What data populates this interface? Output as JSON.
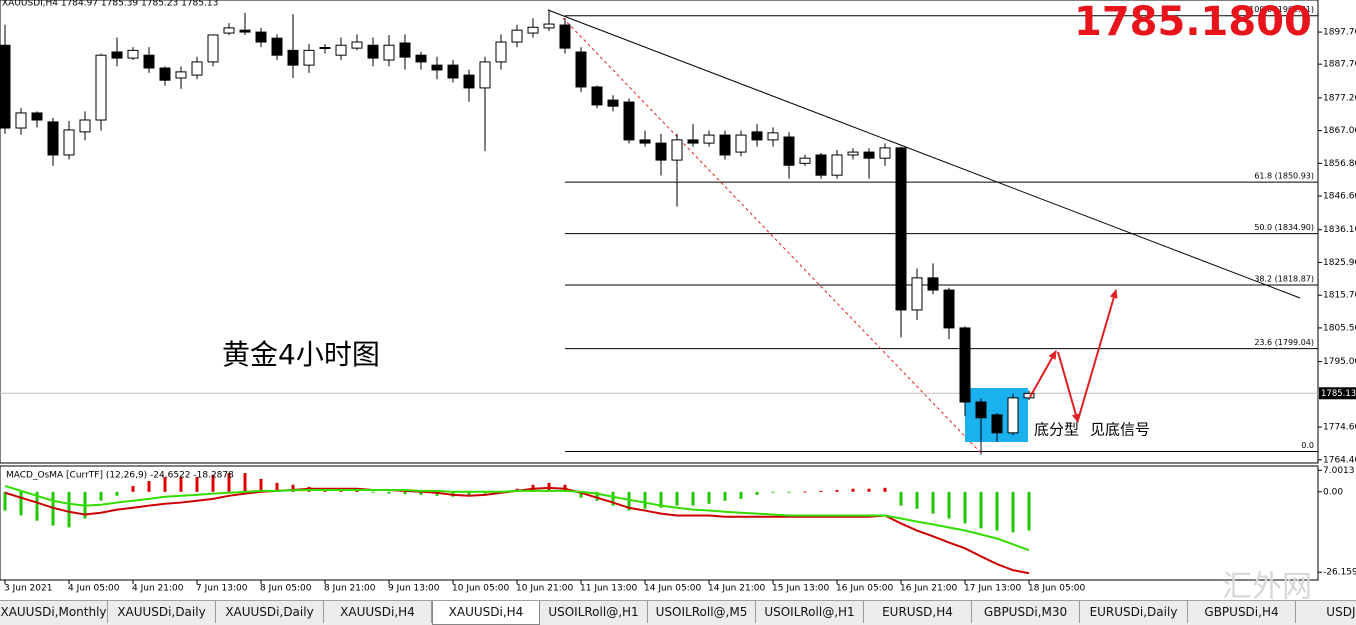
{
  "chart_data": [
    {
      "type": "candlestick",
      "title": "XAUUSDi,H4  1784.97 1785.39 1785.23 1785.13",
      "categories": [
        "3 Jun 2021",
        null,
        null,
        null,
        "4 Jun 05:00",
        null,
        null,
        null,
        "4 Jun 21:00",
        null,
        null,
        null,
        "7 Jun 13:00",
        null,
        null,
        null,
        "8 Jun 05:00",
        null,
        null,
        null,
        "8 Jun 21:00",
        null,
        null,
        null,
        "9 Jun 13:00",
        null,
        null,
        null,
        "10 Jun 05:00",
        null,
        null,
        null,
        "10 Jun 21:00",
        null,
        null,
        null,
        "11 Jun 13:00",
        null,
        null,
        null,
        "14 Jun 05:00",
        null,
        null,
        null,
        "14 Jun 21:00",
        null,
        null,
        null,
        "15 Jun 13:00",
        null,
        null,
        null,
        "16 Jun 05:00",
        null,
        null,
        null,
        "16 Jun 21:00",
        null,
        null,
        null,
        "17 Jun 13:00",
        null,
        null,
        null,
        "18 Jun 05:00"
      ],
      "open": [
        1893.6,
        1867.8,
        1872.5,
        1869.7,
        1859.4,
        1866.6,
        1870.3,
        1891.5,
        1889.6,
        1890.5,
        1886.5,
        1883.4,
        1884.3,
        1888.4,
        1897.4,
        1898.3,
        1897.7,
        1895.8,
        1892.0,
        1887.4,
        1892.7,
        1890.5,
        1892.7,
        1893.6,
        1889.0,
        1894.3,
        1890.5,
        1887.4,
        1887.4,
        1884.3,
        1880.3,
        1888.4,
        1894.6,
        1897.4,
        1899.0,
        1899.9,
        1891.5,
        1880.6,
        1876.5,
        1875.9,
        1864.1,
        1863.1,
        1857.8,
        1864.1,
        1863.1,
        1865.6,
        1860.3,
        1866.6,
        1864.1,
        1865.0,
        1856.8,
        1859.4,
        1853.1,
        1859.4,
        1860.3,
        1858.4,
        1861.6,
        1811.1,
        1821.1,
        1817.3,
        1805.5,
        1782.4,
        1778.4,
        1772.8,
        1783.7
      ],
      "high": [
        1900.0,
        1874.0,
        1873.0,
        1871.0,
        1870.0,
        1873.0,
        1891.0,
        1896.0,
        1893.0,
        1893.0,
        1887.0,
        1887.0,
        1890.0,
        1897.0,
        1900.5,
        1903.7,
        1899.0,
        1897.0,
        1903.3,
        1894.0,
        1894.0,
        1896.0,
        1897.0,
        1896.0,
        1896.8,
        1897.0,
        1891.5,
        1890.0,
        1889.0,
        1886.0,
        1890.0,
        1897.0,
        1900.0,
        1902.0,
        1904.7,
        1902.0,
        1893.0,
        1881.0,
        1878.0,
        1877.0,
        1867.0,
        1866.0,
        1866.0,
        1869.0,
        1867.0,
        1867.0,
        1867.0,
        1869.0,
        1868.0,
        1866.5,
        1859.5,
        1860.0,
        1861.0,
        1861.5,
        1861.5,
        1863.0,
        1862.0,
        1824.0,
        1825.6,
        1818.0,
        1806.0,
        1783.5,
        1779.0,
        1785.0,
        1786.0
      ],
      "low": [
        1866.0,
        1865.7,
        1868.0,
        1856.0,
        1858.0,
        1864.0,
        1867.0,
        1887.0,
        1889.0,
        1885.0,
        1881.0,
        1880.0,
        1883.0,
        1887.0,
        1896.8,
        1896.8,
        1893.0,
        1889.0,
        1883.4,
        1885.0,
        1891.0,
        1889.0,
        1892.0,
        1887.0,
        1887.0,
        1886.0,
        1886.0,
        1883.0,
        1882.0,
        1876.0,
        1860.6,
        1886.0,
        1893.0,
        1896.0,
        1898.0,
        1891.0,
        1879.0,
        1874.0,
        1873.0,
        1863.0,
        1862.0,
        1853.0,
        1843.3,
        1862.0,
        1862.0,
        1858.0,
        1859.0,
        1862.0,
        1862.0,
        1852.0,
        1856.0,
        1852.0,
        1852.0,
        1858.0,
        1852.0,
        1856.0,
        1802.6,
        1808.0,
        1816.0,
        1802.0,
        1778.0,
        1766.0,
        1770.0,
        1772.0,
        1783.0
      ],
      "close": [
        1867.8,
        1872.5,
        1870.3,
        1859.4,
        1867.2,
        1870.3,
        1890.5,
        1889.6,
        1892.0,
        1886.5,
        1882.7,
        1885.3,
        1888.4,
        1896.8,
        1899.0,
        1897.7,
        1894.6,
        1890.5,
        1887.4,
        1892.0,
        1892.9,
        1893.6,
        1894.6,
        1889.6,
        1893.6,
        1889.9,
        1888.4,
        1885.9,
        1883.4,
        1880.3,
        1888.4,
        1894.6,
        1898.3,
        1899.2,
        1900.2,
        1892.7,
        1880.6,
        1875.0,
        1874.6,
        1864.1,
        1863.1,
        1857.8,
        1864.1,
        1863.1,
        1865.6,
        1859.4,
        1865.6,
        1864.1,
        1866.3,
        1856.2,
        1858.4,
        1853.1,
        1859.4,
        1860.3,
        1858.4,
        1861.6,
        1811.1,
        1821.1,
        1817.3,
        1805.5,
        1782.4,
        1777.5,
        1772.8,
        1783.7,
        1785.1
      ],
      "ylim": [
        1763.4,
        1907.7
      ],
      "yticks": [
        {
          "value": 1897.7,
          "label": "1897.70"
        },
        {
          "value": 1887.7,
          "label": "1887.70"
        },
        {
          "value": 1877.2,
          "label": "1877.20"
        },
        {
          "value": 1867.0,
          "label": "1867.00"
        },
        {
          "value": 1856.8,
          "label": "1856.80"
        },
        {
          "value": 1846.6,
          "label": "1846.60"
        },
        {
          "value": 1836.1,
          "label": "1836.10"
        },
        {
          "value": 1825.9,
          "label": "1825.90"
        },
        {
          "value": 1815.7,
          "label": "1815.70"
        },
        {
          "value": 1805.5,
          "label": "1805.50"
        },
        {
          "value": 1795.0,
          "label": "1795.00"
        },
        {
          "value": 1774.6,
          "label": "1774.60"
        },
        {
          "value": 1764.4,
          "label": "1764.40"
        }
      ],
      "last_price": 1785.13,
      "fib_levels": [
        {
          "value": 1902.81,
          "label": "100.0 (1902.81)"
        },
        {
          "value": 1850.93,
          "label": "61.8 (1850.93)"
        },
        {
          "value": 1834.9,
          "label": "50.0 (1834.90)"
        },
        {
          "value": 1818.87,
          "label": "38.2 (1818.87)"
        },
        {
          "value": 1799.04,
          "label": "23.6 (1799.04)"
        },
        {
          "value": 1766.97,
          "label": "0.0"
        }
      ],
      "bull_color": "#ffffff",
      "bear_color": "#000000"
    },
    {
      "type": "macd",
      "title": "MACD_OsMA [CurrTF] (12,26,9) -24.6522 -18.2878",
      "histogram": [
        -6.1,
        -7.7,
        -9.4,
        -11.0,
        -11.6,
        -8.7,
        -2.9,
        -1.3,
        1.9,
        3.5,
        4.8,
        4.8,
        4.8,
        5.5,
        6.1,
        6.1,
        4.2,
        2.9,
        2.3,
        1.6,
        1.0,
        0.6,
        0.3,
        -0.3,
        -0.6,
        -0.8,
        -1.0,
        -1.3,
        -1.6,
        -1.3,
        -0.6,
        0.3,
        1.0,
        2.3,
        2.9,
        2.3,
        -1.9,
        -2.9,
        -4.5,
        -6.1,
        -5.5,
        -5.2,
        -4.5,
        -4.5,
        -3.9,
        -2.9,
        -2.3,
        -1.0,
        -0.3,
        -0.2,
        0.1,
        0.3,
        0.6,
        1.0,
        1.0,
        1.3,
        -4.5,
        -5.5,
        -7.1,
        -8.7,
        -10.3,
        -11.9,
        -12.6,
        -13.2,
        -12.6
      ],
      "positive_color": "#dd0000",
      "negative_color": "#22c800",
      "series": [
        {
          "color": "#cc0000",
          "values": [
            -0.3,
            -1.9,
            -3.5,
            -5.2,
            -6.5,
            -7.4,
            -6.8,
            -5.8,
            -5.2,
            -4.5,
            -3.9,
            -3.5,
            -2.9,
            -2.3,
            -1.3,
            -0.6,
            0,
            0.3,
            0.6,
            1.0,
            1.0,
            1.0,
            1.0,
            0.6,
            0.6,
            0.3,
            0,
            -0.3,
            -1.0,
            -1.3,
            -1.0,
            -0.3,
            0.3,
            1.0,
            1.3,
            1.0,
            -0.3,
            -1.9,
            -3.5,
            -5.2,
            -6.1,
            -7.1,
            -7.7,
            -7.7,
            -7.7,
            -8.1,
            -8.1,
            -8.1,
            -8.1,
            -8.1,
            -8.1,
            -8.1,
            -8.1,
            -8.1,
            -8.1,
            -7.7,
            -10.3,
            -12.6,
            -14.5,
            -16.5,
            -18.4,
            -21.0,
            -23.5,
            -25.5,
            -26.5
          ]
        },
        {
          "color": "#33dd00",
          "values": [
            1.9,
            0.3,
            -1.3,
            -2.9,
            -3.9,
            -4.5,
            -4.2,
            -3.5,
            -2.9,
            -2.3,
            -1.6,
            -1.3,
            -1.0,
            -0.6,
            -0.3,
            0,
            0.3,
            0.3,
            0.5,
            0.6,
            0.6,
            0.6,
            0.6,
            0.6,
            0.6,
            0.6,
            0.3,
            0.3,
            0,
            0,
            0,
            0,
            0.3,
            0.3,
            0.3,
            0.3,
            0,
            -0.6,
            -1.6,
            -2.6,
            -3.5,
            -4.5,
            -5.2,
            -5.8,
            -6.1,
            -6.5,
            -6.8,
            -7.1,
            -7.4,
            -7.7,
            -7.7,
            -7.7,
            -7.7,
            -7.7,
            -7.7,
            -7.7,
            -8.7,
            -9.7,
            -10.6,
            -11.6,
            -12.6,
            -13.9,
            -15.2,
            -17.1,
            -19.0
          ]
        }
      ],
      "ylim": [
        -28.7,
        8.4
      ],
      "yticks": [
        7.0013,
        {
          "value": 0,
          "label": "0.00"
        },
        -26.1596
      ]
    }
  ],
  "annotations": {
    "chart_label": "黄金4小时图",
    "pattern": "底分型",
    "signal": "见底信号",
    "price": "1785.1800",
    "watermark": "汇外网"
  },
  "tabs": [
    "XAUUSDi,Monthly",
    "XAUUSDi,Daily",
    "XAUUSDi,Daily",
    "XAUUSDi,H4",
    "XAUUSDi,H4",
    "USOILRoll@,H1",
    "USOILRoll@,M5",
    "USOILRoll@,H1",
    "EURUSD,H4",
    "GBPUSDi,M30",
    "EURUSDi,Daily",
    "GBPUSDi,H4",
    "USDJPYi"
  ],
  "active_tab": 4
}
